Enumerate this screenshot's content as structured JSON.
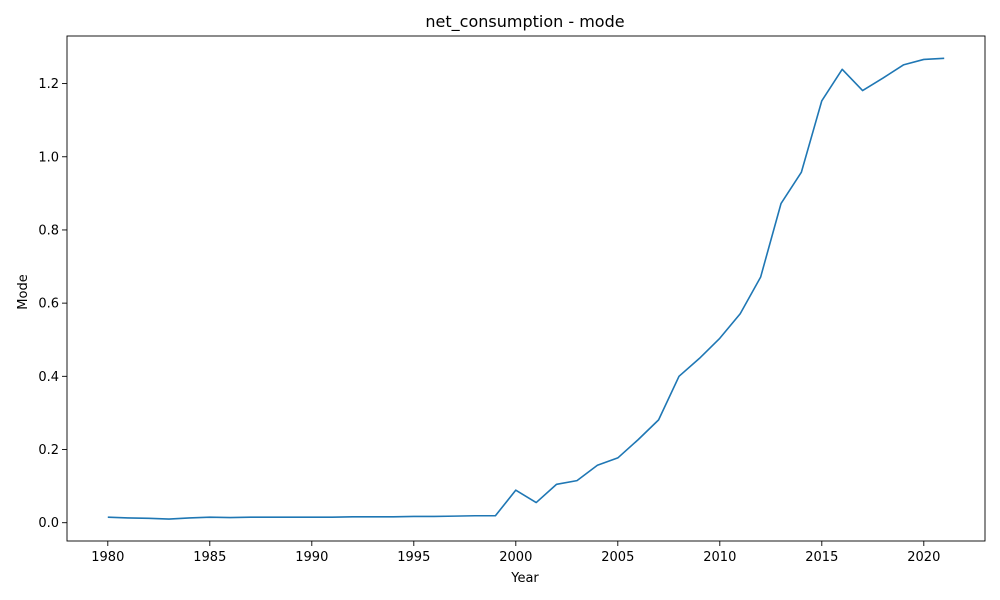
{
  "chart_data": {
    "type": "line",
    "title": "net_consumption - mode",
    "xlabel": "Year",
    "ylabel": "Mode",
    "xlim": [
      1978,
      2023
    ],
    "ylim": [
      -0.05,
      1.33
    ],
    "xticks": [
      1980,
      1985,
      1990,
      1995,
      2000,
      2005,
      2010,
      2015,
      2020
    ],
    "yticks": [
      0.0,
      0.2,
      0.4,
      0.6,
      0.8,
      1.0,
      1.2
    ],
    "ytick_labels": [
      "0.0",
      "0.2",
      "0.4",
      "0.6",
      "0.8",
      "1.0",
      "1.2"
    ],
    "grid": false,
    "series": [
      {
        "color": "#1f77b4",
        "x": [
          1980,
          1981,
          1982,
          1983,
          1984,
          1985,
          1986,
          1987,
          1988,
          1989,
          1990,
          1991,
          1992,
          1993,
          1994,
          1995,
          1996,
          1997,
          1998,
          1999,
          2000,
          2001,
          2002,
          2003,
          2004,
          2005,
          2006,
          2007,
          2008,
          2009,
          2010,
          2011,
          2012,
          2013,
          2014,
          2015,
          2016,
          2017,
          2018,
          2019,
          2020,
          2021
        ],
        "y": [
          0.015,
          0.013,
          0.012,
          0.01,
          0.013,
          0.015,
          0.014,
          0.015,
          0.015,
          0.015,
          0.015,
          0.015,
          0.016,
          0.016,
          0.016,
          0.017,
          0.017,
          0.018,
          0.019,
          0.019,
          0.089,
          0.055,
          0.105,
          0.115,
          0.157,
          0.177,
          0.227,
          0.281,
          0.4,
          0.449,
          0.504,
          0.571,
          0.671,
          0.872,
          0.958,
          1.153,
          1.239,
          1.181,
          1.215,
          1.251,
          1.266,
          1.269
        ]
      }
    ]
  }
}
